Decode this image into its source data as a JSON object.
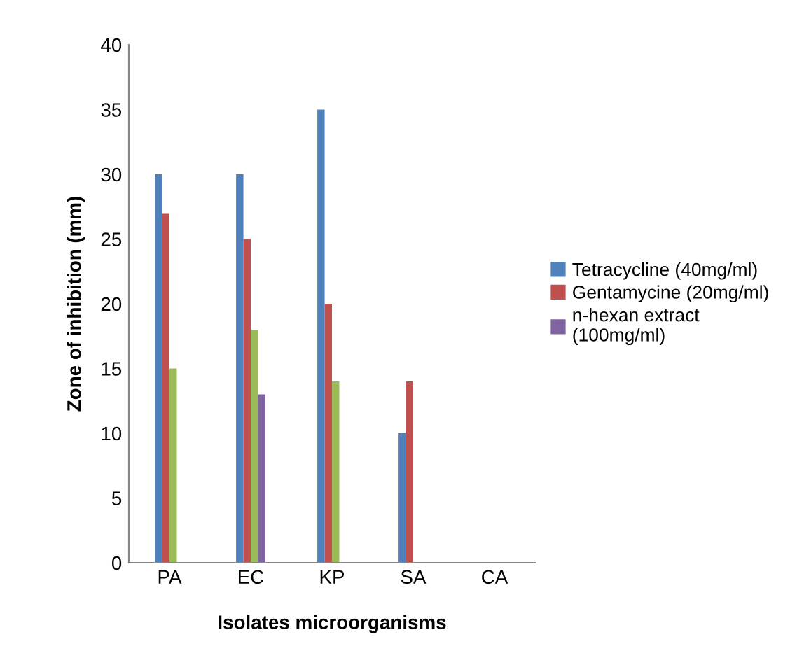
{
  "chart_data": {
    "type": "bar",
    "xlabel": "Isolates microorganisms",
    "ylabel": "Zone of inhibition (mm)",
    "categories": [
      "PA",
      "EC",
      "KP",
      "SA",
      "CA"
    ],
    "series": [
      {
        "name": "Tetracycline (40mg/ml)",
        "color": "#4f81bd",
        "values": [
          30,
          30,
          35,
          10,
          0
        ]
      },
      {
        "name": "Gentamycine (20mg/ml)",
        "color": "#c0504d",
        "values": [
          27,
          25,
          20,
          14,
          0
        ]
      },
      {
        "color": "#9bbb59",
        "values": [
          15,
          18,
          14,
          0,
          0
        ]
      },
      {
        "name": "n-hexan extract\n(100mg/ml)",
        "color": "#8064a2",
        "values": [
          0,
          13,
          0,
          0,
          0
        ]
      }
    ],
    "ylim": [
      0,
      40
    ],
    "yticks": [
      0,
      5,
      10,
      15,
      20,
      25,
      30,
      35,
      40
    ],
    "grid": false,
    "legend": "right"
  }
}
